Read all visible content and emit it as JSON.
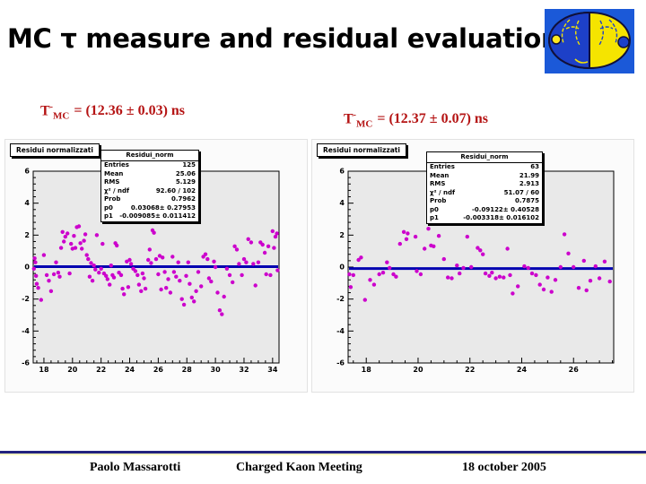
{
  "slide": {
    "title": "MC τ measure and residual evaluation"
  },
  "tau_labels": {
    "left": {
      "symbol": "T",
      "sup": "-",
      "sub": "MC",
      "value": "= (12.36 ± 0.03) ns"
    },
    "right": {
      "symbol": "T",
      "sup": "-",
      "sub": "MC",
      "value": "= (12.37 ± 0.07) ns"
    }
  },
  "footer": {
    "author": "Paolo Massarotti",
    "meeting": "Charged Kaon Meeting",
    "date": "18 october 2005"
  },
  "colors": {
    "accent_red": "#b51414",
    "marker": "#cc00cc",
    "fit_line": "#0000b0",
    "frame_bg": "#e9e9e9",
    "footer_line": "#23237d",
    "logo_blue": "#1b59d8",
    "logo_yellow": "#f5e400"
  },
  "chart_data": [
    {
      "type": "scatter",
      "title": "Residui normalizzati",
      "stats_title": "Residui_norm",
      "stats": [
        [
          "Entries",
          "125"
        ],
        [
          "Mean",
          "25.06"
        ],
        [
          "RMS",
          "5.129"
        ],
        [
          "χ² / ndf",
          "92.60 / 102"
        ],
        [
          "Prob",
          "0.7962"
        ],
        [
          "p0",
          "0.03068± 0.27953"
        ],
        [
          "p1",
          "-0.009085± 0.011412"
        ]
      ],
      "xlim": [
        17.25,
        34.45
      ],
      "ylim": [
        -6,
        6
      ],
      "xticks": [
        18,
        20,
        22,
        24,
        26,
        28,
        30,
        32,
        34
      ],
      "yticks": [
        -6,
        -4,
        -2,
        0,
        2,
        4,
        6
      ],
      "x_minor_step": 0.5,
      "y_minor_step": 0.4,
      "fit_y": 0.03,
      "points": [
        [
          17.3,
          -0.1
        ],
        [
          17.35,
          0.55
        ],
        [
          17.4,
          0.3
        ],
        [
          17.45,
          -0.55
        ],
        [
          17.5,
          -1.05
        ],
        [
          17.6,
          -1.3
        ],
        [
          17.8,
          -2.05
        ],
        [
          18.0,
          0.75
        ],
        [
          18.2,
          -0.5
        ],
        [
          18.35,
          -0.85
        ],
        [
          18.5,
          -1.5
        ],
        [
          18.7,
          -0.45
        ],
        [
          18.85,
          0.3
        ],
        [
          19.0,
          -0.35
        ],
        [
          19.1,
          -0.6
        ],
        [
          19.2,
          1.2
        ],
        [
          19.3,
          2.2
        ],
        [
          19.4,
          1.6
        ],
        [
          19.5,
          1.9
        ],
        [
          19.65,
          2.1
        ],
        [
          19.8,
          -0.4
        ],
        [
          19.9,
          1.45
        ],
        [
          20.0,
          1.15
        ],
        [
          20.1,
          1.95
        ],
        [
          20.2,
          1.2
        ],
        [
          20.3,
          2.5
        ],
        [
          20.45,
          2.55
        ],
        [
          20.55,
          1.5
        ],
        [
          20.65,
          1.15
        ],
        [
          20.8,
          1.65
        ],
        [
          20.9,
          2.05
        ],
        [
          21.0,
          0.75
        ],
        [
          21.1,
          0.5
        ],
        [
          21.2,
          -0.6
        ],
        [
          21.3,
          0.25
        ],
        [
          21.4,
          -0.85
        ],
        [
          21.5,
          0.1
        ],
        [
          21.6,
          -0.15
        ],
        [
          21.7,
          2.0
        ],
        [
          21.85,
          -0.35
        ],
        [
          22.0,
          -0.1
        ],
        [
          22.1,
          1.45
        ],
        [
          22.2,
          -0.4
        ],
        [
          22.35,
          -0.55
        ],
        [
          22.45,
          -0.75
        ],
        [
          22.6,
          -1.1
        ],
        [
          22.7,
          0.1
        ],
        [
          22.8,
          -0.5
        ],
        [
          22.9,
          -0.65
        ],
        [
          23.0,
          1.5
        ],
        [
          23.1,
          1.35
        ],
        [
          23.25,
          -0.35
        ],
        [
          23.4,
          -0.5
        ],
        [
          23.5,
          -1.35
        ],
        [
          23.6,
          -1.7
        ],
        [
          23.8,
          0.35
        ],
        [
          23.9,
          -1.25
        ],
        [
          24.0,
          0.45
        ],
        [
          24.1,
          0.2
        ],
        [
          24.25,
          -0.1
        ],
        [
          24.4,
          -0.25
        ],
        [
          24.55,
          -0.5
        ],
        [
          24.65,
          -1.1
        ],
        [
          24.8,
          -1.5
        ],
        [
          24.9,
          -0.4
        ],
        [
          25.0,
          -0.7
        ],
        [
          25.1,
          -1.35
        ],
        [
          25.3,
          0.45
        ],
        [
          25.4,
          1.1
        ],
        [
          25.5,
          0.25
        ],
        [
          25.6,
          2.3
        ],
        [
          25.7,
          2.15
        ],
        [
          25.85,
          0.5
        ],
        [
          26.0,
          -0.45
        ],
        [
          26.1,
          0.7
        ],
        [
          26.2,
          -1.4
        ],
        [
          26.3,
          0.6
        ],
        [
          26.45,
          -0.3
        ],
        [
          26.55,
          -1.3
        ],
        [
          26.7,
          -0.75
        ],
        [
          26.85,
          -1.6
        ],
        [
          27.0,
          0.65
        ],
        [
          27.1,
          -0.3
        ],
        [
          27.25,
          -0.6
        ],
        [
          27.4,
          0.3
        ],
        [
          27.5,
          -0.85
        ],
        [
          27.65,
          -2.0
        ],
        [
          27.8,
          -2.35
        ],
        [
          27.95,
          -0.55
        ],
        [
          28.1,
          0.3
        ],
        [
          28.2,
          -1.05
        ],
        [
          28.35,
          -1.9
        ],
        [
          28.5,
          -2.15
        ],
        [
          28.65,
          -1.5
        ],
        [
          28.8,
          -0.3
        ],
        [
          29.0,
          -1.2
        ],
        [
          29.15,
          0.65
        ],
        [
          29.3,
          0.8
        ],
        [
          29.45,
          0.5
        ],
        [
          29.55,
          -0.7
        ],
        [
          29.7,
          -0.9
        ],
        [
          29.9,
          0.35
        ],
        [
          30.0,
          0.0
        ],
        [
          30.15,
          -1.6
        ],
        [
          30.3,
          -2.7
        ],
        [
          30.45,
          -2.95
        ],
        [
          30.6,
          -1.85
        ],
        [
          30.8,
          -0.1
        ],
        [
          31.0,
          -0.5
        ],
        [
          31.2,
          -0.95
        ],
        [
          31.35,
          1.3
        ],
        [
          31.5,
          1.1
        ],
        [
          31.65,
          0.2
        ],
        [
          31.85,
          -0.5
        ],
        [
          32.0,
          0.5
        ],
        [
          32.15,
          0.3
        ],
        [
          32.3,
          1.75
        ],
        [
          32.5,
          1.55
        ],
        [
          32.65,
          0.2
        ],
        [
          32.8,
          -1.15
        ],
        [
          33.0,
          0.3
        ],
        [
          33.15,
          1.55
        ],
        [
          33.3,
          1.4
        ],
        [
          33.45,
          0.9
        ],
        [
          33.55,
          -0.45
        ],
        [
          33.7,
          1.3
        ],
        [
          33.85,
          -0.5
        ],
        [
          34.0,
          2.25
        ],
        [
          34.1,
          1.2
        ],
        [
          34.2,
          1.9
        ],
        [
          34.3,
          2.1
        ],
        [
          34.35,
          -0.2
        ]
      ]
    },
    {
      "type": "scatter",
      "title": "Residui normalizzati",
      "stats_title": "Residui_norm",
      "stats": [
        [
          "Entries",
          "63"
        ],
        [
          "Mean",
          "21.99"
        ],
        [
          "RMS",
          "2.913"
        ],
        [
          "χ² / ndf",
          "51.07 / 60"
        ],
        [
          "Prob",
          "0.7875"
        ],
        [
          "p0",
          "-0.09122± 0.40528"
        ],
        [
          "p1",
          "-0.003318± 0.016102"
        ]
      ],
      "xlim": [
        17.3,
        27.55
      ],
      "ylim": [
        -6,
        6
      ],
      "xticks": [
        18,
        20,
        22,
        24,
        26
      ],
      "yticks": [
        -6,
        -4,
        -2,
        0,
        2,
        4,
        6
      ],
      "x_minor_step": 0.5,
      "y_minor_step": 0.4,
      "fit_y": -0.09,
      "points": [
        [
          17.35,
          -0.45
        ],
        [
          17.4,
          -1.25
        ],
        [
          17.5,
          -0.5
        ],
        [
          17.7,
          0.45
        ],
        [
          17.8,
          0.6
        ],
        [
          17.95,
          -2.05
        ],
        [
          18.15,
          -0.8
        ],
        [
          18.3,
          -1.1
        ],
        [
          18.5,
          -0.45
        ],
        [
          18.65,
          -0.35
        ],
        [
          18.8,
          0.3
        ],
        [
          18.9,
          -0.05
        ],
        [
          19.05,
          -0.45
        ],
        [
          19.15,
          -0.6
        ],
        [
          19.3,
          1.45
        ],
        [
          19.45,
          2.2
        ],
        [
          19.55,
          1.75
        ],
        [
          19.6,
          2.1
        ],
        [
          19.9,
          1.9
        ],
        [
          19.95,
          -0.25
        ],
        [
          20.1,
          -0.45
        ],
        [
          20.25,
          1.15
        ],
        [
          20.4,
          2.4
        ],
        [
          20.5,
          1.35
        ],
        [
          20.6,
          1.3
        ],
        [
          20.8,
          1.95
        ],
        [
          21.0,
          0.5
        ],
        [
          21.15,
          -0.65
        ],
        [
          21.3,
          -0.7
        ],
        [
          21.5,
          0.1
        ],
        [
          21.6,
          -0.4
        ],
        [
          21.75,
          -0.05
        ],
        [
          21.9,
          1.9
        ],
        [
          22.05,
          0.0
        ],
        [
          22.3,
          1.2
        ],
        [
          22.4,
          1.05
        ],
        [
          22.5,
          0.8
        ],
        [
          22.6,
          -0.4
        ],
        [
          22.75,
          -0.55
        ],
        [
          22.85,
          -0.35
        ],
        [
          23.0,
          -0.7
        ],
        [
          23.15,
          -0.6
        ],
        [
          23.3,
          -0.65
        ],
        [
          23.45,
          1.15
        ],
        [
          23.55,
          -0.5
        ],
        [
          23.65,
          -1.65
        ],
        [
          23.85,
          -1.2
        ],
        [
          24.1,
          0.05
        ],
        [
          24.25,
          -0.05
        ],
        [
          24.4,
          -0.4
        ],
        [
          24.55,
          -0.5
        ],
        [
          24.7,
          -1.1
        ],
        [
          24.85,
          -1.4
        ],
        [
          25.0,
          -0.65
        ],
        [
          25.15,
          -1.55
        ],
        [
          25.3,
          -0.8
        ],
        [
          25.5,
          0.0
        ],
        [
          25.65,
          2.05
        ],
        [
          25.8,
          0.85
        ],
        [
          26.0,
          0.0
        ],
        [
          26.2,
          -1.3
        ],
        [
          26.4,
          0.4
        ],
        [
          26.5,
          -1.45
        ],
        [
          26.65,
          -0.85
        ],
        [
          26.85,
          0.05
        ],
        [
          27.0,
          -0.7
        ],
        [
          27.2,
          0.35
        ],
        [
          27.4,
          -0.9
        ]
      ]
    }
  ]
}
